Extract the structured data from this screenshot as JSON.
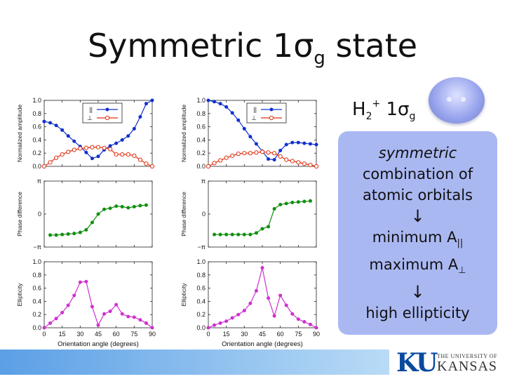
{
  "slide": {
    "title_main": "Symmetric 1σ",
    "title_sub": "g",
    "title_tail": " state"
  },
  "molecule": {
    "label_main": "H",
    "label_sub2": "2",
    "label_sup": "+",
    "label_orbital": " 1σ",
    "label_sub": "g"
  },
  "explanation": {
    "line1": "symmetric",
    "line2": "combination of",
    "line3": "atomic orbitals",
    "arrow1": "↓",
    "line4_main": "minimum A",
    "line4_sub": "||",
    "line5_main": "maximum A",
    "line5_sub": "⊥",
    "arrow2": "↓",
    "line6": "high ellipticity"
  },
  "logo": {
    "letters": "KU",
    "small_text": "THE UNIVERSITY OF",
    "big_text": "KANSAS"
  },
  "colors": {
    "parallel": "#1030d0",
    "perpendicular": "#e03010",
    "phase": "#109010",
    "ellipticity": "#d030d0",
    "box": "#aab8f2",
    "bar_start": "#5b9fe6"
  },
  "chart_data": [
    {
      "type": "line",
      "column": "left",
      "panel": "amplitude",
      "ylabel": "Normalized amplitude",
      "yticks": [
        "0.0",
        "0.2",
        "0.4",
        "0.6",
        "0.8",
        "1.0"
      ],
      "ylim": [
        0,
        1.0
      ],
      "x": [
        0,
        5,
        10,
        15,
        20,
        25,
        30,
        35,
        40,
        45,
        50,
        55,
        60,
        65,
        70,
        75,
        80,
        85,
        90
      ],
      "series": [
        {
          "name": "||",
          "color": "#1030d0",
          "values": [
            0.68,
            0.66,
            0.62,
            0.55,
            0.46,
            0.38,
            0.3,
            0.21,
            0.12,
            0.15,
            0.25,
            0.31,
            0.35,
            0.4,
            0.46,
            0.57,
            0.75,
            0.95,
            1.0
          ]
        },
        {
          "name": "⊥",
          "color": "#e03010",
          "values": [
            0.0,
            0.06,
            0.13,
            0.18,
            0.22,
            0.25,
            0.27,
            0.28,
            0.29,
            0.29,
            0.28,
            0.26,
            0.18,
            0.18,
            0.18,
            0.16,
            0.1,
            0.04,
            0.0
          ]
        }
      ]
    },
    {
      "type": "line",
      "column": "left",
      "panel": "phase",
      "ylabel": "Phase difference",
      "yticks": [
        "−π",
        "0",
        "π"
      ],
      "ylim": [
        -3.1416,
        3.1416
      ],
      "x": [
        5,
        10,
        15,
        20,
        25,
        30,
        35,
        40,
        45,
        50,
        55,
        60,
        65,
        70,
        75,
        80,
        85
      ],
      "series": [
        {
          "name": "phase",
          "color": "#109010",
          "values": [
            -2.0,
            -2.0,
            -1.95,
            -1.9,
            -1.85,
            -1.75,
            -1.5,
            -0.8,
            0.0,
            0.45,
            0.55,
            0.75,
            0.7,
            0.6,
            0.7,
            0.8,
            0.85
          ]
        }
      ]
    },
    {
      "type": "line",
      "column": "left",
      "panel": "ellipticity",
      "ylabel": "Ellipticity",
      "xlabel": "Orientation angle (degrees)",
      "yticks": [
        "0.0",
        "0.2",
        "0.4",
        "0.6",
        "0.8",
        "1.0"
      ],
      "ylim": [
        0,
        1.0
      ],
      "xticks": [
        "0",
        "15",
        "30",
        "45",
        "60",
        "75",
        "90"
      ],
      "xlim": [
        0,
        90
      ],
      "x": [
        0,
        5,
        10,
        15,
        20,
        25,
        30,
        35,
        40,
        45,
        50,
        55,
        60,
        65,
        70,
        75,
        80,
        85,
        90
      ],
      "series": [
        {
          "name": "ellipticity",
          "color": "#d030d0",
          "values": [
            0.0,
            0.07,
            0.14,
            0.23,
            0.34,
            0.49,
            0.69,
            0.7,
            0.32,
            0.04,
            0.21,
            0.25,
            0.35,
            0.21,
            0.17,
            0.16,
            0.12,
            0.07,
            0.0
          ]
        }
      ]
    },
    {
      "type": "line",
      "column": "right",
      "panel": "amplitude",
      "ylabel": "Normalized amplitude",
      "yticks": [
        "0.0",
        "0.2",
        "0.4",
        "0.6",
        "0.8",
        "1.0"
      ],
      "ylim": [
        0,
        1.0
      ],
      "x": [
        0,
        5,
        10,
        15,
        20,
        25,
        30,
        35,
        40,
        45,
        50,
        55,
        60,
        65,
        70,
        75,
        80,
        85,
        90
      ],
      "series": [
        {
          "name": "||",
          "color": "#1030d0",
          "values": [
            1.0,
            0.98,
            0.95,
            0.9,
            0.81,
            0.7,
            0.57,
            0.45,
            0.34,
            0.23,
            0.11,
            0.1,
            0.24,
            0.33,
            0.36,
            0.36,
            0.35,
            0.34,
            0.33
          ]
        },
        {
          "name": "⊥",
          "color": "#e03010",
          "values": [
            0.0,
            0.05,
            0.09,
            0.13,
            0.16,
            0.19,
            0.2,
            0.2,
            0.21,
            0.22,
            0.21,
            0.2,
            0.15,
            0.1,
            0.08,
            0.06,
            0.04,
            0.02,
            0.0
          ]
        }
      ]
    },
    {
      "type": "line",
      "column": "right",
      "panel": "phase",
      "ylabel": "Phase difference",
      "yticks": [
        "−π",
        "0",
        "π"
      ],
      "ylim": [
        -3.1416,
        3.1416
      ],
      "x": [
        5,
        10,
        15,
        20,
        25,
        30,
        35,
        40,
        45,
        50,
        55,
        60,
        65,
        70,
        75,
        80,
        85
      ],
      "series": [
        {
          "name": "phase",
          "color": "#109010",
          "values": [
            -1.95,
            -1.95,
            -1.95,
            -1.95,
            -1.95,
            -1.95,
            -1.95,
            -1.8,
            -1.4,
            -1.2,
            0.5,
            0.9,
            1.0,
            1.1,
            1.15,
            1.2,
            1.25
          ]
        }
      ]
    },
    {
      "type": "line",
      "column": "right",
      "panel": "ellipticity",
      "ylabel": "Ellipticity",
      "xlabel": "Orientation angle (degrees)",
      "yticks": [
        "0.0",
        "0.2",
        "0.4",
        "0.6",
        "0.8",
        "1.0"
      ],
      "ylim": [
        0,
        1.0
      ],
      "xticks": [
        "0",
        "15",
        "30",
        "45",
        "60",
        "75",
        "90"
      ],
      "xlim": [
        0,
        90
      ],
      "x": [
        0,
        5,
        10,
        15,
        20,
        25,
        30,
        35,
        40,
        45,
        50,
        55,
        60,
        65,
        70,
        75,
        80,
        85,
        90
      ],
      "series": [
        {
          "name": "ellipticity",
          "color": "#d030d0",
          "values": [
            0.0,
            0.04,
            0.07,
            0.1,
            0.15,
            0.2,
            0.26,
            0.37,
            0.56,
            0.91,
            0.45,
            0.18,
            0.49,
            0.34,
            0.21,
            0.13,
            0.09,
            0.05,
            0.0
          ]
        }
      ]
    }
  ]
}
